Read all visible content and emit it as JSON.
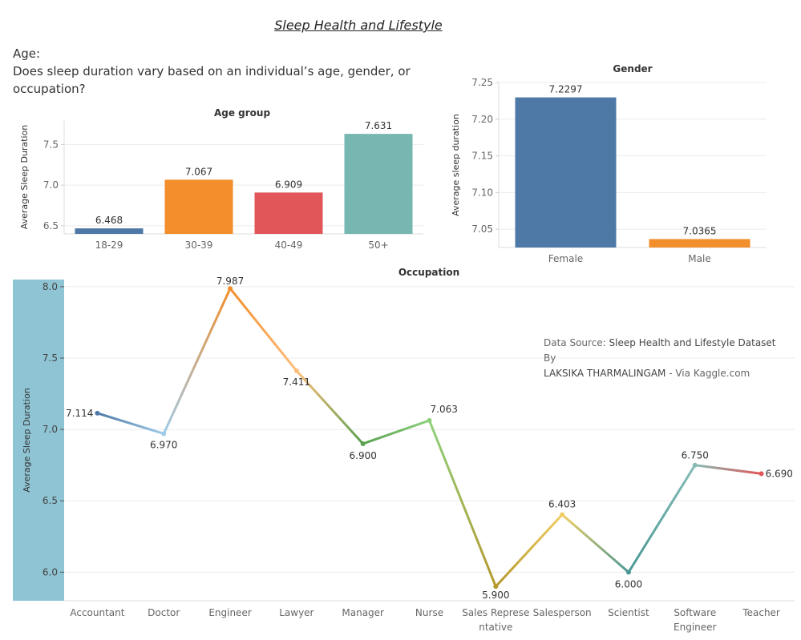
{
  "page": {
    "title": "Sleep Health and Lifestyle",
    "question_line1": "Age:",
    "question_line2": "Does sleep duration vary based on an individual’s age, gender, or",
    "question_line3": "occupation?",
    "source_prefix": "Data Source: ",
    "source_dataset": "Sleep Health and Lifestyle Dataset",
    "source_by": " By",
    "source_author": "LAKSIKA THARMALINGAM",
    "source_via": " - Via Kaggle.com"
  },
  "chart_data": [
    {
      "type": "bar",
      "title": "Age group",
      "ylabel": "Average Sleep Duration",
      "xlabel": "",
      "categories": [
        "18-29",
        "30-39",
        "40-49",
        "50+"
      ],
      "values": [
        6.468,
        7.067,
        6.909,
        7.631
      ],
      "value_labels": [
        "6.468",
        "7.067",
        "6.909",
        "7.631"
      ],
      "colors": [
        "#4e79a7",
        "#f28e2b",
        "#e15759",
        "#76b7b2"
      ],
      "ylim": [
        6.4,
        7.8
      ],
      "yticks": [
        6.5,
        7.0,
        7.5
      ],
      "ytick_labels": [
        "6.5",
        "7.0",
        "7.5"
      ],
      "grid": true
    },
    {
      "type": "bar",
      "title": "Gender",
      "ylabel": "Average sleep duration",
      "xlabel": "",
      "categories": [
        "Female",
        "Male"
      ],
      "values": [
        7.2297,
        7.0365
      ],
      "value_labels": [
        "7.2297",
        "7.0365"
      ],
      "colors": [
        "#4e79a7",
        "#f28e2b"
      ],
      "ylim": [
        7.025,
        7.25
      ],
      "yticks": [
        7.05,
        7.1,
        7.15,
        7.2,
        7.25
      ],
      "ytick_labels": [
        "7.05",
        "7.10",
        "7.15",
        "7.20",
        "7.25"
      ],
      "grid": true
    },
    {
      "type": "line",
      "title": "Occupation",
      "ylabel": "Average Sleep Duration",
      "xlabel": "",
      "categories": [
        "Accountant",
        "Doctor",
        "Engineer",
        "Lawyer",
        "Manager",
        "Nurse",
        "Sales Representative",
        "Salesperson",
        "Scientist",
        "Software Engineer",
        "Teacher"
      ],
      "category_lines": [
        [
          "Accountant"
        ],
        [
          "Doctor"
        ],
        [
          "Engineer"
        ],
        [
          "Lawyer"
        ],
        [
          "Manager"
        ],
        [
          "Nurse"
        ],
        [
          "Sales Represe",
          "ntative"
        ],
        [
          "Salesperson"
        ],
        [
          "Scientist"
        ],
        [
          "Software",
          "Engineer"
        ],
        [
          "Teacher"
        ]
      ],
      "values": [
        7.114,
        6.97,
        7.987,
        7.411,
        6.9,
        7.063,
        5.9,
        6.403,
        6.0,
        6.75,
        6.69
      ],
      "value_labels": [
        "7.114",
        "6.970",
        "7.987",
        "7.411",
        "6.900",
        "7.063",
        "5.900",
        "6.403",
        "6.000",
        "6.750",
        "6.690"
      ],
      "colors": [
        "#4e79a7",
        "#a0cbe8",
        "#f28e2b",
        "#ffbe7d",
        "#59a14f",
        "#8cd17d",
        "#b6992d",
        "#f1ce63",
        "#499894",
        "#86bcb6",
        "#e15759"
      ],
      "band_color": "#8fc4d4",
      "ylim": [
        5.8,
        8.05
      ],
      "yticks": [
        6.0,
        6.5,
        7.0,
        7.5,
        8.0
      ],
      "ytick_labels": [
        "6.0",
        "6.5",
        "7.0",
        "7.5",
        "8.0"
      ],
      "grid": true
    }
  ]
}
